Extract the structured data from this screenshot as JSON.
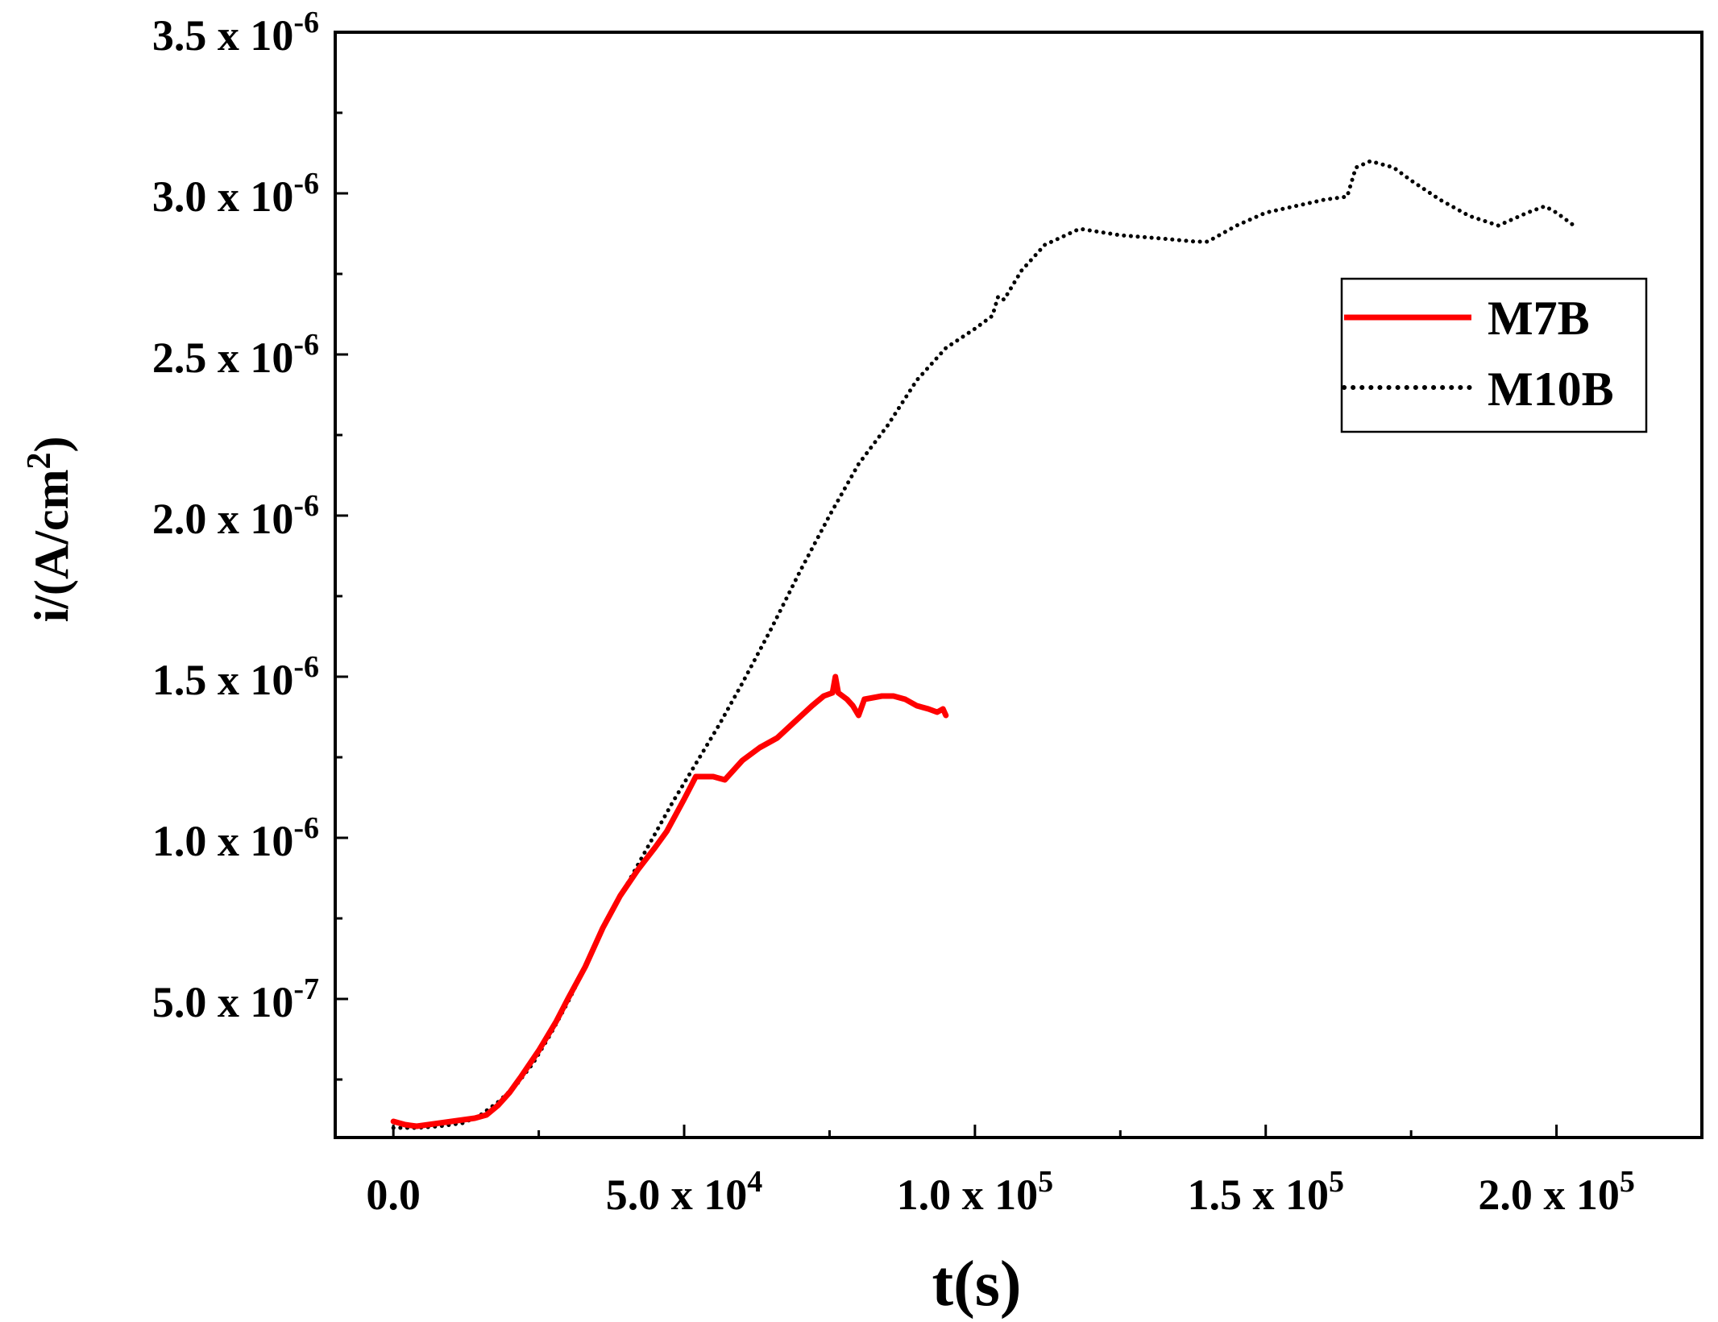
{
  "chart_data": {
    "type": "line",
    "xlabel": "t(s)",
    "ylabel": "i/(A/cm",
    "ylabel_sup": "2",
    "ylabel_close": ")",
    "xlim": [
      -10000,
      225000
    ],
    "ylim": [
      7e-08,
      3.5e-06
    ],
    "x_ticks": [
      {
        "value": 0,
        "text": "0.0",
        "exp": ""
      },
      {
        "value": 50000,
        "text": "5.0 x 10",
        "exp": "4"
      },
      {
        "value": 100000,
        "text": "1.0 x 10",
        "exp": "5"
      },
      {
        "value": 150000,
        "text": "1.5 x 10",
        "exp": "5"
      },
      {
        "value": 200000,
        "text": "2.0 x 10",
        "exp": "5"
      }
    ],
    "y_ticks": [
      {
        "value": 5e-07,
        "text": "5.0 x 10",
        "exp": "-7"
      },
      {
        "value": 1e-06,
        "text": "1.0 x 10",
        "exp": "-6"
      },
      {
        "value": 1.5e-06,
        "text": "1.5 x 10",
        "exp": "-6"
      },
      {
        "value": 2e-06,
        "text": "2.0 x 10",
        "exp": "-6"
      },
      {
        "value": 2.5e-06,
        "text": "2.5 x 10",
        "exp": "-6"
      },
      {
        "value": 3e-06,
        "text": "3.0 x 10",
        "exp": "-6"
      },
      {
        "value": 3.5e-06,
        "text": "3.5 x 10",
        "exp": "-6"
      }
    ],
    "x_minor_ticks": [
      25000,
      75000,
      125000,
      175000,
      225000
    ],
    "y_minor_ticks": [
      2.5e-07,
      7.5e-07,
      1.25e-06,
      1.75e-06,
      2.25e-06,
      2.75e-06,
      3.25e-06
    ],
    "legend_position": "top-right",
    "series": [
      {
        "name": "M7B",
        "color": "#ff0000",
        "style": "solid",
        "points": [
          [
            0,
            1.2e-07
          ],
          [
            2000,
            1.1e-07
          ],
          [
            4000,
            1.05e-07
          ],
          [
            6000,
            1.1e-07
          ],
          [
            8000,
            1.15e-07
          ],
          [
            10000,
            1.2e-07
          ],
          [
            12000,
            1.25e-07
          ],
          [
            14000,
            1.3e-07
          ],
          [
            16000,
            1.4e-07
          ],
          [
            18000,
            1.7e-07
          ],
          [
            20000,
            2.1e-07
          ],
          [
            22000,
            2.6e-07
          ],
          [
            25000,
            3.4e-07
          ],
          [
            28000,
            4.3e-07
          ],
          [
            30000,
            5e-07
          ],
          [
            33000,
            6e-07
          ],
          [
            36000,
            7.2e-07
          ],
          [
            39000,
            8.2e-07
          ],
          [
            42000,
            9e-07
          ],
          [
            45000,
            9.7e-07
          ],
          [
            47000,
            1.02e-06
          ],
          [
            50000,
            1.12e-06
          ],
          [
            52000,
            1.19e-06
          ],
          [
            55000,
            1.19e-06
          ],
          [
            57000,
            1.18e-06
          ],
          [
            60000,
            1.24e-06
          ],
          [
            63000,
            1.28e-06
          ],
          [
            66000,
            1.31e-06
          ],
          [
            69000,
            1.36e-06
          ],
          [
            72000,
            1.41e-06
          ],
          [
            74000,
            1.44e-06
          ],
          [
            75500,
            1.45e-06
          ],
          [
            76000,
            1.5e-06
          ],
          [
            76500,
            1.45e-06
          ],
          [
            78000,
            1.43e-06
          ],
          [
            79000,
            1.41e-06
          ],
          [
            80000,
            1.38e-06
          ],
          [
            81000,
            1.43e-06
          ],
          [
            84000,
            1.44e-06
          ],
          [
            86000,
            1.44e-06
          ],
          [
            88000,
            1.43e-06
          ],
          [
            90000,
            1.41e-06
          ],
          [
            92000,
            1.4e-06
          ],
          [
            93500,
            1.39e-06
          ],
          [
            94500,
            1.4e-06
          ],
          [
            95000,
            1.38e-06
          ]
        ]
      },
      {
        "name": "M10B",
        "color": "#000000",
        "style": "dotted",
        "points": [
          [
            0,
            1e-07
          ],
          [
            4000,
            1e-07
          ],
          [
            8000,
            1.05e-07
          ],
          [
            12000,
            1.15e-07
          ],
          [
            15000,
            1.4e-07
          ],
          [
            18000,
            1.8e-07
          ],
          [
            21000,
            2.3e-07
          ],
          [
            24000,
            3e-07
          ],
          [
            27000,
            3.9e-07
          ],
          [
            30000,
            4.9e-07
          ],
          [
            33000,
            6e-07
          ],
          [
            36000,
            7.2e-07
          ],
          [
            40000,
            8.5e-07
          ],
          [
            44000,
            9.8e-07
          ],
          [
            48000,
            1.11e-06
          ],
          [
            52000,
            1.23e-06
          ],
          [
            56000,
            1.35e-06
          ],
          [
            60000,
            1.48e-06
          ],
          [
            65000,
            1.65e-06
          ],
          [
            70000,
            1.83e-06
          ],
          [
            75000,
            2e-06
          ],
          [
            80000,
            2.16e-06
          ],
          [
            85000,
            2.28e-06
          ],
          [
            90000,
            2.42e-06
          ],
          [
            95000,
            2.52e-06
          ],
          [
            100000,
            2.58e-06
          ],
          [
            103000,
            2.62e-06
          ],
          [
            104000,
            2.68e-06
          ],
          [
            105000,
            2.67e-06
          ],
          [
            108000,
            2.76e-06
          ],
          [
            112000,
            2.84e-06
          ],
          [
            118000,
            2.89e-06
          ],
          [
            125000,
            2.87e-06
          ],
          [
            132000,
            2.86e-06
          ],
          [
            138000,
            2.85e-06
          ],
          [
            140000,
            2.85e-06
          ],
          [
            145000,
            2.9e-06
          ],
          [
            150000,
            2.94e-06
          ],
          [
            155000,
            2.96e-06
          ],
          [
            160000,
            2.98e-06
          ],
          [
            164000,
            2.99e-06
          ],
          [
            165500,
            3.08e-06
          ],
          [
            168000,
            3.1e-06
          ],
          [
            172000,
            3.08e-06
          ],
          [
            175000,
            3.04e-06
          ],
          [
            180000,
            2.98e-06
          ],
          [
            185000,
            2.93e-06
          ],
          [
            190000,
            2.9e-06
          ],
          [
            195000,
            2.94e-06
          ],
          [
            198000,
            2.96e-06
          ],
          [
            200000,
            2.94e-06
          ],
          [
            203000,
            2.9e-06
          ]
        ]
      }
    ]
  }
}
